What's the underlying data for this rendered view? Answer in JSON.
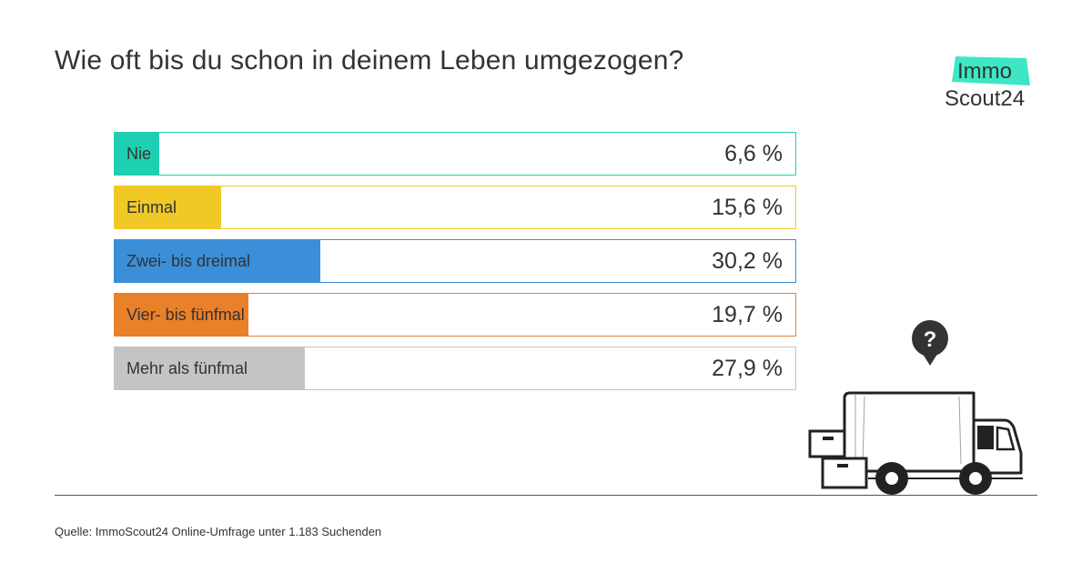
{
  "title": "Wie oft bis du schon in deinem Leben umgezogen?",
  "logo": {
    "line1": "Immo",
    "line2": "Scout24"
  },
  "colors": {
    "teal": "#1fcfb1",
    "yellow": "#f0c926",
    "blue": "#3b8ed8",
    "orange": "#e9802a",
    "gray": "#c4c4c4"
  },
  "chart_data": {
    "type": "bar",
    "orientation": "horizontal",
    "title": "Wie oft bis du schon in deinem Leben umgezogen?",
    "categories": [
      "Nie",
      "Einmal",
      "Zwei- bis dreimal",
      "Vier- bis fünfmal",
      "Mehr als fünfmal"
    ],
    "values": [
      6.6,
      15.6,
      30.2,
      19.7,
      27.9
    ],
    "value_labels": [
      "6,6 %",
      "15,6 %",
      "30,2 %",
      "19,7 %",
      "27,9 %"
    ],
    "colors": [
      "#1fcfb1",
      "#f0c926",
      "#3b8ed8",
      "#e9802a",
      "#c4c4c4"
    ],
    "xlim": [
      0,
      100
    ],
    "unit": "%"
  },
  "source": "Quelle: ImmoScout24 Online-Umfrage unter 1.183 Suchenden",
  "illustration": {
    "icon": "moving-truck-icon",
    "badge_icon": "question-mark-pin-icon",
    "badge_text": "?"
  }
}
